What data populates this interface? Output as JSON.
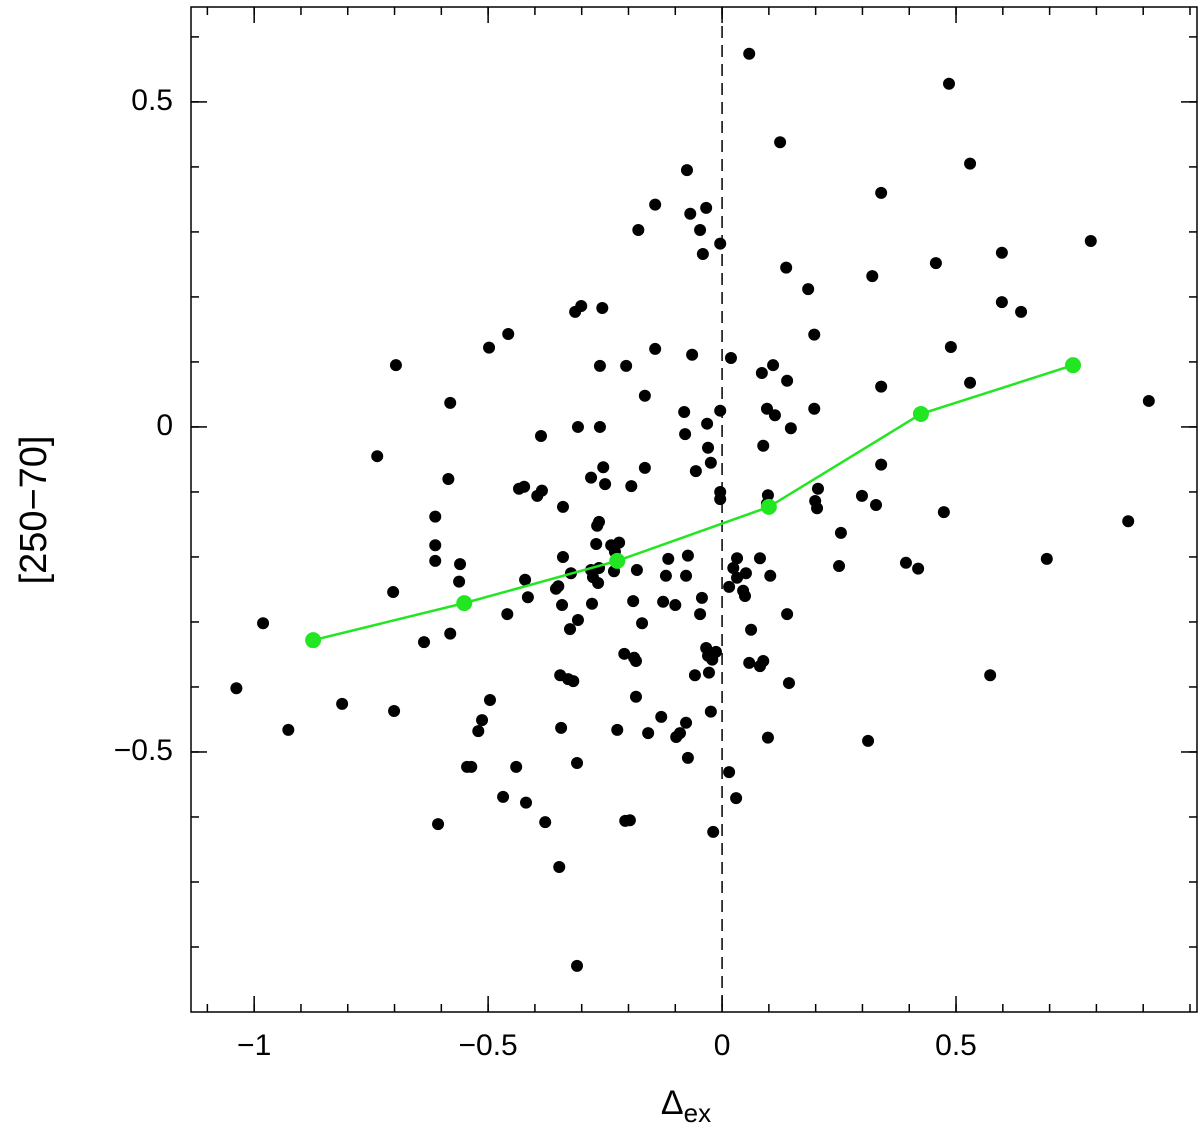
{
  "chart_data": {
    "type": "scatter",
    "xlabel": {
      "main": "Δ",
      "sub": "ex"
    },
    "ylabel": "[250−70]",
    "xlim": [
      -1.135,
      1.015
    ],
    "ylim": [
      -0.9,
      0.646
    ],
    "xticks": [
      {
        "value": -1,
        "label": "−1"
      },
      {
        "value": -0.5,
        "label": "−0.5"
      },
      0,
      0.5
    ],
    "yticks": [
      {
        "value": -0.5,
        "label": "−0.5"
      },
      0,
      0.5
    ],
    "xticks_minor": [
      -1.1,
      -1,
      -0.9,
      -0.8,
      -0.7,
      -0.6,
      -0.5,
      -0.4,
      -0.3,
      -0.2,
      -0.1,
      0,
      0.1,
      0.2,
      0.3,
      0.4,
      0.5,
      0.6,
      0.7,
      0.8,
      0.9,
      1.0
    ],
    "yticks_minor": [
      -0.8,
      -0.7,
      -0.6,
      -0.5,
      -0.4,
      -0.3,
      -0.2,
      -0.1,
      0,
      0.1,
      0.2,
      0.3,
      0.4,
      0.5,
      0.6
    ],
    "vline": 0,
    "series": [
      {
        "color": "#000000",
        "line": false,
        "x": [
          0.058,
          0.485,
          0.124,
          0.53,
          -0.075,
          0.34,
          -0.143,
          -0.034,
          -0.068,
          -0.179,
          -0.047,
          -0.004,
          0.788,
          -0.041,
          0.598,
          0.457,
          0.137,
          0.321,
          0.184,
          -0.301,
          -0.314,
          -0.256,
          0.598,
          0.639,
          -0.457,
          0.197,
          -0.498,
          0.489,
          -0.143,
          -0.064,
          -0.697,
          -0.261,
          -0.205,
          0.019,
          0.109,
          0.085,
          0.139,
          0.53,
          0.34,
          -0.165,
          -0.581,
          0.912,
          0.197,
          -0.004,
          -0.081,
          0.096,
          0.113,
          -0.308,
          -0.261,
          -0.032,
          0.147,
          -0.387,
          0.088,
          -0.03,
          -0.079,
          -0.737,
          -0.024,
          -0.254,
          -0.165,
          0.34,
          -0.056,
          -0.585,
          -0.28,
          -0.25,
          -0.434,
          -0.423,
          -0.385,
          -0.395,
          -0.194,
          0.205,
          -0.004,
          -0.004,
          0.098,
          0.299,
          0.329,
          -0.34,
          -0.263,
          -0.267,
          0.203,
          0.199,
          0.096,
          -0.613,
          0.474,
          0.868,
          -0.613,
          -0.22,
          -0.269,
          -0.237,
          -0.229,
          -0.34,
          0.254,
          -0.56,
          -0.613,
          0.032,
          0.081,
          0.024,
          -0.073,
          -0.115,
          0.393,
          0.419,
          0.694,
          0.25,
          -0.263,
          -0.28,
          -0.231,
          -0.182,
          -0.323,
          -0.276,
          -0.12,
          -0.077,
          0.032,
          0.051,
          0.103,
          -0.562,
          -0.421,
          -0.35,
          -0.265,
          -0.703,
          -0.355,
          -0.415,
          0.015,
          0.045,
          -0.043,
          -0.342,
          -0.278,
          -0.19,
          -0.126,
          -0.1,
          0.049,
          -0.459,
          0.139,
          -0.047,
          -0.308,
          -0.171,
          -0.325,
          0.062,
          -0.637,
          -0.581,
          -0.981,
          -0.034,
          -0.013,
          -0.03,
          -0.021,
          -0.209,
          -0.188,
          -0.184,
          0.058,
          0.088,
          0.081,
          -0.346,
          -0.329,
          -0.318,
          -0.058,
          -0.028,
          -1.038,
          0.143,
          0.573,
          -0.812,
          -0.496,
          -0.184,
          -0.701,
          -0.024,
          -0.13,
          -0.513,
          -0.521,
          -0.344,
          -0.224,
          -0.158,
          -0.077,
          -0.09,
          -0.098,
          -0.927,
          0.098,
          0.312,
          -0.31,
          -0.073,
          -0.545,
          -0.536,
          -0.44,
          0.015,
          -0.468,
          -0.419,
          0.03,
          -0.378,
          -0.607,
          -0.207,
          -0.197,
          -0.019,
          -0.348,
          -0.31
        ],
        "y": [
          0.574,
          0.528,
          0.438,
          0.405,
          0.395,
          0.36,
          0.342,
          0.337,
          0.328,
          0.303,
          0.303,
          0.282,
          0.286,
          0.266,
          0.268,
          0.252,
          0.245,
          0.232,
          0.212,
          0.186,
          0.177,
          0.183,
          0.192,
          0.177,
          0.143,
          0.142,
          0.122,
          0.123,
          0.12,
          0.111,
          0.095,
          0.094,
          0.094,
          0.106,
          0.095,
          0.083,
          0.071,
          0.068,
          0.062,
          0.048,
          0.037,
          0.04,
          0.028,
          0.025,
          0.023,
          0.028,
          0.018,
          0,
          0,
          0.005,
          -0.002,
          -0.014,
          -0.029,
          -0.032,
          -0.011,
          -0.045,
          -0.055,
          -0.062,
          -0.063,
          -0.058,
          -0.068,
          -0.08,
          -0.078,
          -0.088,
          -0.095,
          -0.092,
          -0.098,
          -0.106,
          -0.091,
          -0.095,
          -0.1,
          -0.111,
          -0.105,
          -0.106,
          -0.12,
          -0.123,
          -0.146,
          -0.152,
          -0.125,
          -0.114,
          -0.118,
          -0.138,
          -0.131,
          -0.145,
          -0.182,
          -0.178,
          -0.18,
          -0.182,
          -0.192,
          -0.2,
          -0.163,
          -0.211,
          -0.206,
          -0.202,
          -0.202,
          -0.217,
          -0.198,
          -0.203,
          -0.209,
          -0.218,
          -0.203,
          -0.214,
          -0.217,
          -0.22,
          -0.222,
          -0.22,
          -0.225,
          -0.231,
          -0.229,
          -0.229,
          -0.232,
          -0.225,
          -0.229,
          -0.238,
          -0.235,
          -0.245,
          -0.24,
          -0.254,
          -0.249,
          -0.262,
          -0.246,
          -0.252,
          -0.263,
          -0.274,
          -0.272,
          -0.268,
          -0.269,
          -0.274,
          -0.26,
          -0.288,
          -0.288,
          -0.288,
          -0.297,
          -0.302,
          -0.311,
          -0.312,
          -0.331,
          -0.318,
          -0.302,
          -0.34,
          -0.346,
          -0.352,
          -0.358,
          -0.349,
          -0.355,
          -0.36,
          -0.363,
          -0.36,
          -0.368,
          -0.382,
          -0.388,
          -0.391,
          -0.382,
          -0.378,
          -0.402,
          -0.394,
          -0.382,
          -0.426,
          -0.42,
          -0.415,
          -0.437,
          -0.438,
          -0.446,
          -0.451,
          -0.468,
          -0.463,
          -0.466,
          -0.471,
          -0.455,
          -0.471,
          -0.477,
          -0.466,
          -0.478,
          -0.483,
          -0.517,
          -0.509,
          -0.523,
          -0.523,
          -0.523,
          -0.531,
          -0.569,
          -0.578,
          -0.571,
          -0.608,
          -0.611,
          -0.606,
          -0.605,
          -0.623,
          -0.677,
          -0.829
        ]
      },
      {
        "color": "#22e622",
        "line": true,
        "x": [
          -0.874,
          -0.551,
          -0.224,
          0.1,
          0.425,
          0.75
        ],
        "y": [
          -0.328,
          -0.271,
          -0.206,
          -0.123,
          0.02,
          0.095
        ]
      }
    ]
  }
}
